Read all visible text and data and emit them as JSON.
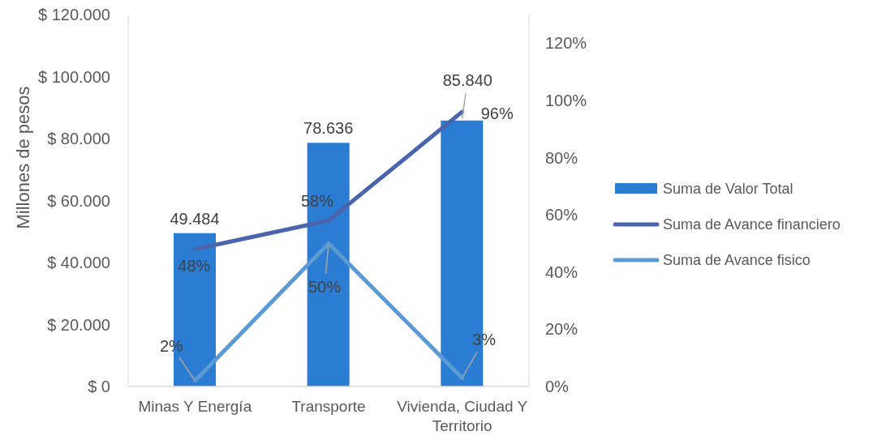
{
  "chart_data": {
    "type": "bar",
    "ylabel": "Millones de pesos",
    "categories": [
      "Minas Y Energía",
      "Transporte",
      "Vivienda, Ciudad Y Territorio"
    ],
    "series": [
      {
        "name": "Suma de Valor Total",
        "color": "#2b7cd3",
        "values": [
          49484,
          78636,
          85840
        ],
        "value_labels": [
          "49.484",
          "78.636",
          "85.840"
        ]
      },
      {
        "name": "Suma de Avance financiero",
        "type": "line",
        "axis": "y2",
        "color": "#4a64ae",
        "values": [
          48,
          58,
          96
        ],
        "value_labels": [
          "48%",
          "58%",
          "96%"
        ]
      },
      {
        "name": "Suma de Avance fisico",
        "type": "line",
        "axis": "y2",
        "color": "#5b9bd5",
        "values": [
          2,
          50,
          3
        ],
        "value_labels": [
          "2%",
          "50%",
          "3%"
        ]
      }
    ],
    "ylim": [
      0,
      120000
    ],
    "yticks": [
      {
        "value": 0,
        "label": "$ 0"
      },
      {
        "value": 20000,
        "label": "$ 20.000"
      },
      {
        "value": 40000,
        "label": "$ 40.000"
      },
      {
        "value": 60000,
        "label": "$ 60.000"
      },
      {
        "value": 80000,
        "label": "$ 80.000"
      },
      {
        "value": 100000,
        "label": "$ 100.000"
      },
      {
        "value": 120000,
        "label": "$ 120.000"
      }
    ],
    "y2lim": [
      0,
      130
    ],
    "y2ticks": [
      {
        "value": 0,
        "label": "0%"
      },
      {
        "value": 20,
        "label": "20%"
      },
      {
        "value": 40,
        "label": "40%"
      },
      {
        "value": 60,
        "label": "60%"
      },
      {
        "value": 80,
        "label": "80%"
      },
      {
        "value": 100,
        "label": "100%"
      },
      {
        "value": 120,
        "label": "120%"
      }
    ],
    "legend": "right",
    "marker": "none",
    "line_style": "solid"
  }
}
